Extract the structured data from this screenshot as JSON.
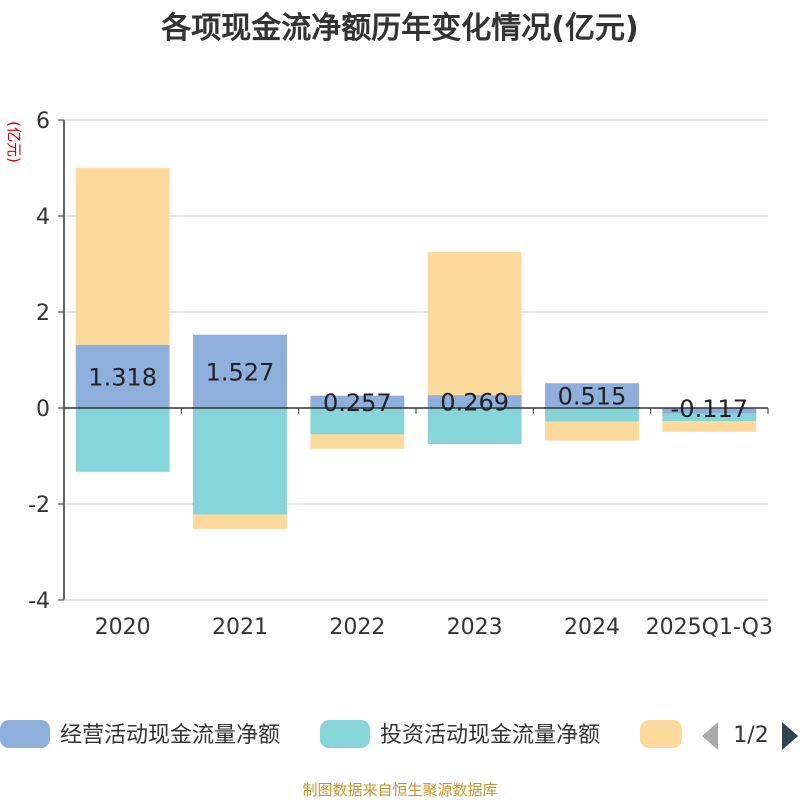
{
  "chart_data": {
    "type": "bar",
    "stacked": true,
    "title": "各项现金流净额历年变化情况(亿元)",
    "ylabel": "(亿元)",
    "xlabel": "",
    "ylim": [
      -4,
      6
    ],
    "yticks": [
      -4,
      -2,
      0,
      2,
      4,
      6
    ],
    "categories": [
      "2020",
      "2021",
      "2022",
      "2023",
      "2024",
      "2025Q1-Q3"
    ],
    "series": [
      {
        "name": "经营活动现金流量净额",
        "values": [
          1.318,
          1.527,
          0.257,
          0.269,
          0.515,
          -0.117
        ],
        "labels": [
          "1.318",
          "1.527",
          "0.257",
          "0.269",
          "0.515",
          "-0.117"
        ]
      },
      {
        "name": "投资活动现金流量净额",
        "values": [
          -1.33,
          -2.22,
          -0.55,
          -0.75,
          -0.28,
          -0.16
        ]
      },
      {
        "name": "",
        "values": [
          3.68,
          -0.3,
          -0.3,
          2.98,
          -0.4,
          -0.22
        ]
      }
    ],
    "legend_position": "bottom",
    "grid": true
  },
  "colors": {
    "series": [
      "#8eaedb",
      "#86d5d8",
      "#fdd99c"
    ],
    "unit_label": "#cc0000",
    "source": "#c8952a",
    "axis": "#333333",
    "grid": "#cccccc",
    "pager_prev": "#aaaaaa",
    "pager_next": "#2f4554"
  },
  "legend": {
    "page_indicator": "1/2",
    "prev_icon": "triangle-left-icon",
    "next_icon": "triangle-right-icon"
  },
  "source_text": "制图数据来自恒生聚源数据库"
}
